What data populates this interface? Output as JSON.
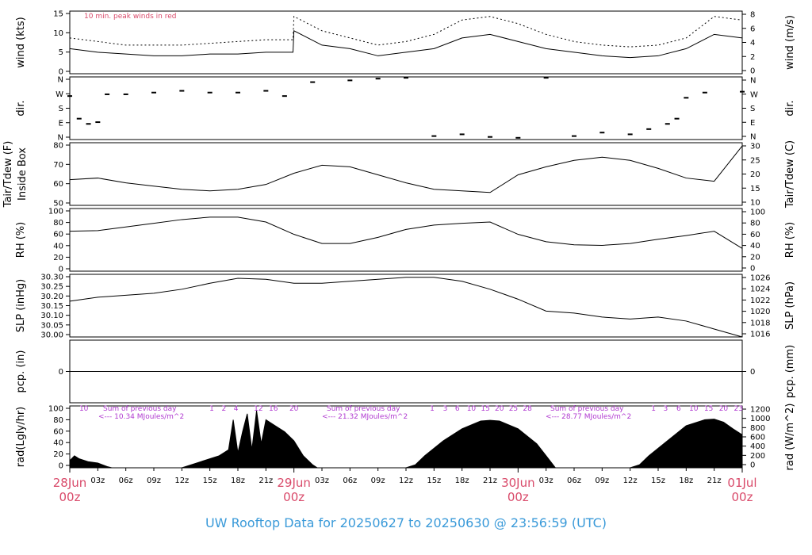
{
  "footer_title": "UW Rooftop Data for 20250627  to  20250630 @ 23:56:59  (UTC)",
  "colors": {
    "peak": "#d94a6a",
    "precip": "#4a6fd9",
    "date": "#d94a6a",
    "sum": "#b03ad0",
    "footer": "#3a9ad9"
  },
  "chart_data": {
    "type": "line",
    "time_axis": {
      "date_labels": [
        {
          "date": "28Jun",
          "hour": "00z"
        },
        {
          "date": "29Jun",
          "hour": "00z"
        },
        {
          "date": "30Jun",
          "hour": "00z"
        },
        {
          "date": "01Jul",
          "hour": "00z"
        }
      ],
      "hour_labels": [
        "03z",
        "06z",
        "09z",
        "12z",
        "15z",
        "18z",
        "21z",
        "03z",
        "06z",
        "09z",
        "12z",
        "15z",
        "18z",
        "21z",
        "03z",
        "06z",
        "09z",
        "12z",
        "15z",
        "18z",
        "21z"
      ]
    },
    "panels": [
      {
        "id": "wind",
        "ylabel_left": "wind (kts)",
        "ylabel_right": "wind (m/s)",
        "left_ticks": [
          "0",
          "5",
          "10",
          "15"
        ],
        "right_ticks": [
          "0",
          "2",
          "4",
          "6",
          "8"
        ],
        "ylim": [
          0,
          17.5
        ],
        "note": "10 min. peak winds in red",
        "series": [
          {
            "x": [
              0,
              3,
              6,
              9,
              12,
              15,
              18,
              21,
              23.9,
              24,
              27,
              30,
              33,
              36,
              39,
              42,
              45,
              48,
              51,
              54,
              57,
              60,
              63,
              66,
              69,
              72
            ],
            "values": [
              7,
              6,
              5.5,
              5,
              5,
              5.5,
              5.5,
              6,
              6,
              12,
              8,
              7,
              5,
              6,
              7,
              10,
              11,
              9,
              7,
              6,
              5,
              4.5,
              5,
              7,
              11,
              10
            ]
          },
          {
            "name": "peak",
            "x": [
              0,
              3,
              6,
              9,
              12,
              15,
              18,
              21,
              23.9,
              24,
              27,
              30,
              33,
              36,
              39,
              42,
              45,
              48,
              51,
              54,
              57,
              60,
              63,
              66,
              69,
              72
            ],
            "values": [
              10,
              9,
              8,
              8,
              8,
              8.5,
              9,
              9.5,
              9.5,
              16,
              12,
              10,
              8,
              9,
              11,
              15,
              16,
              14,
              11,
              9,
              8,
              7.5,
              8,
              10,
              16,
              15
            ]
          }
        ]
      },
      {
        "id": "dir",
        "ylabel_left": "dir.",
        "ylabel_right": "dir.",
        "left_ticks": [
          "N",
          "E",
          "S",
          "W",
          "N"
        ],
        "right_ticks": [
          "N",
          "E",
          "S",
          "W",
          "N"
        ],
        "ylim": [
          0,
          360
        ],
        "series": [
          {
            "x": [
              0,
              1,
              2,
              3,
              4,
              6,
              9,
              12,
              15,
              18,
              21,
              23,
              26,
              30,
              33,
              36,
              39,
              42,
              45,
              48,
              51,
              54,
              57,
              60,
              62,
              64,
              65,
              66,
              68,
              72
            ],
            "values": [
              250,
              120,
              90,
              100,
              260,
              260,
              270,
              280,
              270,
              270,
              280,
              250,
              330,
              340,
              350,
              355,
              20,
              30,
              15,
              10,
              355,
              20,
              40,
              30,
              60,
              90,
              120,
              240,
              270,
              275
            ]
          }
        ]
      },
      {
        "id": "temp",
        "ylabel_left": "Tair/Tdew (F)\nInside Box",
        "ylabel_right": "Tair/Tdew (C)",
        "left_ticks": [
          "50",
          "60",
          "70",
          "80"
        ],
        "right_ticks": [
          "10",
          "15",
          "20",
          "25",
          "30"
        ],
        "ylim": [
          48,
          87
        ],
        "series": [
          {
            "x": [
              0,
              3,
              6,
              9,
              12,
              15,
              18,
              21,
              24,
              27,
              30,
              33,
              36,
              39,
              42,
              45,
              48,
              51,
              54,
              57,
              60,
              63,
              66,
              69,
              72
            ],
            "values": [
              64,
              65,
              62,
              60,
              58,
              57,
              58,
              61,
              68,
              73,
              72,
              67,
              62,
              58,
              57,
              56,
              67,
              72,
              76,
              78,
              76,
              71,
              65,
              63,
              85
            ]
          }
        ]
      },
      {
        "id": "rh",
        "ylabel_left": "RH (%)",
        "ylabel_right": "RH (%)",
        "left_ticks": [
          "0",
          "20",
          "40",
          "60",
          "80",
          "100"
        ],
        "right_ticks": [
          "0",
          "20",
          "40",
          "60",
          "80",
          "100"
        ],
        "ylim": [
          0,
          102
        ],
        "series": [
          {
            "x": [
              0,
              3,
              6,
              9,
              12,
              15,
              18,
              21,
              24,
              27,
              30,
              33,
              36,
              39,
              42,
              45,
              48,
              51,
              54,
              57,
              60,
              63,
              66,
              69,
              72
            ],
            "values": [
              65,
              66,
              72,
              78,
              84,
              88,
              88,
              80,
              60,
              45,
              45,
              55,
              68,
              75,
              78,
              80,
              60,
              48,
              43,
              42,
              45,
              52,
              58,
              65,
              37
            ]
          }
        ]
      },
      {
        "id": "slp",
        "ylabel_left": "SLP (inHg)",
        "ylabel_right": "SLP (hPa)",
        "left_ticks": [
          "30.00",
          "30.05",
          "30.10",
          "30.15",
          "30.20",
          "30.25",
          "30.30"
        ],
        "right_ticks": [
          "1016",
          "1018",
          "1020",
          "1022",
          "1024",
          "1026"
        ],
        "ylim": [
          30.0,
          30.315
        ],
        "series": [
          {
            "x": [
              0,
              3,
              6,
              9,
              12,
              15,
              18,
              21,
              24,
              27,
              30,
              33,
              36,
              39,
              42,
              45,
              48,
              51,
              54,
              57,
              60,
              63,
              66,
              69,
              72
            ],
            "values": [
              30.18,
              30.2,
              30.21,
              30.22,
              30.24,
              30.27,
              30.295,
              30.29,
              30.27,
              30.27,
              30.28,
              30.29,
              30.3,
              30.3,
              30.28,
              30.24,
              30.19,
              30.13,
              30.12,
              30.1,
              30.09,
              30.1,
              30.08,
              30.04,
              30.0
            ]
          }
        ]
      },
      {
        "id": "pcp",
        "ylabel_left": "pcp. (in)",
        "ylabel_right": "pcp. (mm)",
        "left_ticks": [
          "0"
        ],
        "right_ticks": [
          "0"
        ],
        "ylim": [
          -0.5,
          0.5
        ],
        "series": [
          {
            "x": [
              0,
              72
            ],
            "values": [
              0,
              0
            ]
          }
        ]
      },
      {
        "id": "rad",
        "ylabel_left": "rad(Lgly/hr)",
        "ylabel_right": "rad (W/m^2)",
        "left_ticks": [
          "0",
          "20",
          "40",
          "60",
          "80",
          "100"
        ],
        "right_ticks": [
          "0",
          "200",
          "400",
          "600",
          "800",
          "1000",
          "1200"
        ],
        "ylim": [
          0,
          103
        ],
        "sum_labels": [
          {
            "title": "Sum of previous day",
            "value": "<--- 10.34 MJoules/m^2"
          },
          {
            "title": "Sum of previous day",
            "value": "<--- 21.32 MJoules/m^2"
          },
          {
            "title": "Sum of previous day",
            "value": "<--- 28.77 MJoules/m^2"
          }
        ],
        "hour_marks": [
          {
            "x": 1.5,
            "label": "10"
          },
          {
            "x": 15.2,
            "label": "1"
          },
          {
            "x": 16.5,
            "label": "2"
          },
          {
            "x": 17.8,
            "label": "4"
          },
          {
            "x": 20.2,
            "label": "12"
          },
          {
            "x": 21.8,
            "label": "16"
          },
          {
            "x": 24.0,
            "label": "20"
          },
          {
            "x": 38.8,
            "label": "1"
          },
          {
            "x": 40.2,
            "label": "3"
          },
          {
            "x": 41.5,
            "label": "6"
          },
          {
            "x": 43.0,
            "label": "10"
          },
          {
            "x": 44.5,
            "label": "15"
          },
          {
            "x": 46.0,
            "label": "20"
          },
          {
            "x": 47.5,
            "label": "25"
          },
          {
            "x": 49.0,
            "label": "28"
          },
          {
            "x": 62.5,
            "label": "1"
          },
          {
            "x": 63.8,
            "label": "3"
          },
          {
            "x": 65.2,
            "label": "6"
          },
          {
            "x": 66.8,
            "label": "10"
          },
          {
            "x": 68.4,
            "label": "15"
          },
          {
            "x": 70.0,
            "label": "20"
          },
          {
            "x": 71.6,
            "label": "23"
          }
        ],
        "series": [
          {
            "x": [
              0,
              0.5,
              1,
              2,
              3,
              4,
              4.5,
              12,
              13,
              15,
              16,
              17,
              17.5,
              18,
              18.5,
              19,
              19.5,
              20,
              20.5,
              21,
              22,
              23,
              24,
              25,
              26,
              26.5,
              36,
              37,
              38,
              40,
              42,
              44,
              45,
              46,
              48,
              50,
              51,
              52,
              60,
              61,
              62,
              64,
              66,
              68,
              69,
              70,
              71,
              72
            ],
            "values": [
              12,
              20,
              15,
              10,
              8,
              2,
              0,
              0,
              5,
              15,
              20,
              30,
              80,
              25,
              60,
              90,
              30,
              95,
              40,
              80,
              70,
              60,
              45,
              20,
              5,
              0,
              0,
              5,
              20,
              45,
              65,
              78,
              79,
              78,
              65,
              40,
              20,
              0,
              0,
              5,
              20,
              45,
              70,
              80,
              81,
              76,
              65,
              55
            ]
          }
        ]
      }
    ]
  }
}
